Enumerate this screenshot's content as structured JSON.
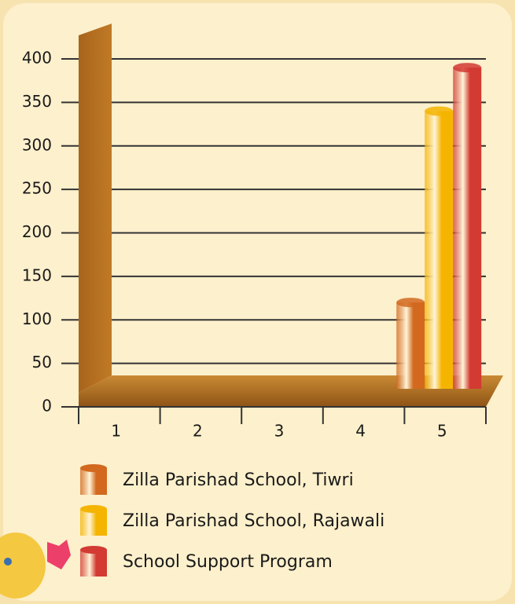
{
  "chart_data": {
    "type": "bar",
    "categories": [
      "1",
      "2",
      "3",
      "4",
      "5"
    ],
    "series": [
      {
        "name": "Zilla Parishad School, Tiwri",
        "color": "#d2691e",
        "values": [
          0,
          0,
          0,
          0,
          120
        ]
      },
      {
        "name": "Zilla Parishad School, Rajawali",
        "color": "#f5b400",
        "values": [
          0,
          0,
          0,
          0,
          340
        ]
      },
      {
        "name": "School Support Program",
        "color": "#d23a32",
        "values": [
          0,
          0,
          0,
          0,
          390
        ]
      }
    ],
    "ylim": [
      0,
      400
    ],
    "yticks": [
      0,
      50,
      100,
      150,
      200,
      250,
      300,
      350,
      400
    ],
    "grid": true
  }
}
